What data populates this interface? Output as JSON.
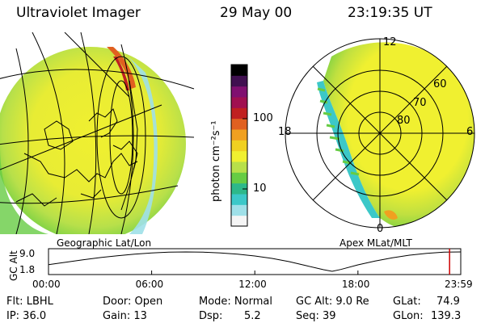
{
  "header": {
    "instrument": "Ultraviolet Imager",
    "date": "29 May 00",
    "time": "23:19:35 UT"
  },
  "panels": {
    "left_label": "Geographic Lat/Lon",
    "right_label": "Apex MLat/MLT"
  },
  "colorbar": {
    "unit_label": "photon cm⁻²s⁻¹",
    "ticks": [
      "100",
      "10"
    ],
    "colors": [
      "#f5f5f5",
      "#9fe0e8",
      "#3cc8c8",
      "#2db88a",
      "#66cc44",
      "#b8e04a",
      "#f0f030",
      "#f0d020",
      "#f0a020",
      "#e06020",
      "#c02020",
      "#a01050",
      "#801070",
      "#401050",
      "#000000"
    ]
  },
  "mlt_labels": {
    "top": "12",
    "left": "18",
    "right": "6",
    "bottom": "0"
  },
  "mlat_labels": [
    "60",
    "70",
    "80"
  ],
  "chart_data": {
    "type": "line",
    "title": "",
    "ylabel": "GC Alt",
    "y_ticks": [
      "9.0",
      "1.8"
    ],
    "x_ticks": [
      "00:00",
      "06:00",
      "12:00",
      "18:00",
      "23:59"
    ],
    "x_hours": [
      0,
      1,
      2,
      3,
      4,
      5,
      6,
      7,
      8,
      9,
      10,
      11,
      12,
      13,
      14,
      15,
      16,
      16.5,
      17,
      18,
      19,
      20,
      21,
      22,
      23,
      23.98
    ],
    "values": [
      4.3,
      5.2,
      6.1,
      6.9,
      7.6,
      8.2,
      8.6,
      8.9,
      9.0,
      8.9,
      8.6,
      8.2,
      7.5,
      6.6,
      5.4,
      3.9,
      2.4,
      1.8,
      2.5,
      4.2,
      5.6,
      6.8,
      7.8,
      8.5,
      8.9,
      9.0
    ],
    "ylim": [
      1.8,
      9.0
    ],
    "xlim": [
      0,
      23.98
    ],
    "marker_hour": 23.33,
    "line_color": "#000000",
    "marker_color": "#cc0000"
  },
  "footer": {
    "row1": [
      {
        "label": "Flt: LBHL"
      },
      {
        "label": "Door: Open"
      },
      {
        "label": "Mode: Normal"
      },
      {
        "label": "GC Alt: 9.0 Re"
      },
      {
        "label": "GLat:",
        "value": "74.9"
      }
    ],
    "row2": [
      {
        "label": "IP: 36.0"
      },
      {
        "label": "Gain: 13"
      },
      {
        "label": "Dsp:",
        "value": "5.2"
      },
      {
        "label": "Seq: 39"
      },
      {
        "label": "GLon:",
        "value": "139.3"
      }
    ]
  }
}
